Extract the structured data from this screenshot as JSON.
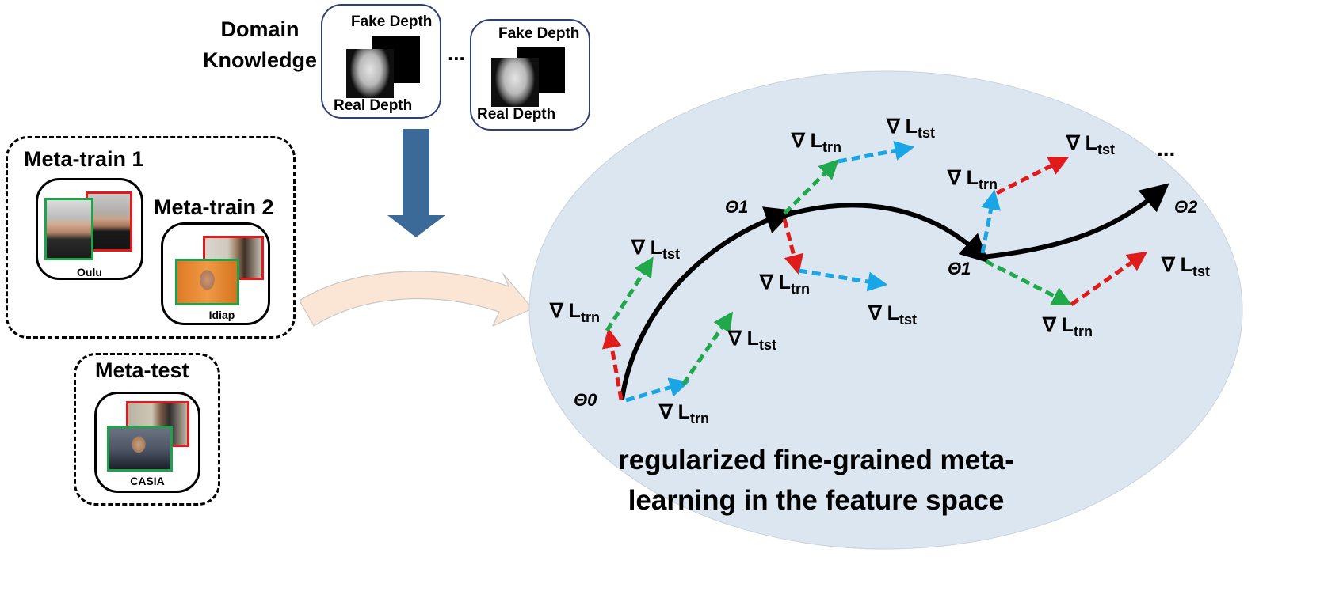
{
  "domain_knowledge": {
    "title_line1": "Domain",
    "title_line2": "Knowledge",
    "cards": [
      {
        "fake_label": "Fake Depth",
        "real_label": "Real Depth"
      },
      {
        "fake_label": "Fake Depth",
        "real_label": "Real Depth"
      }
    ],
    "ellipsis": "..."
  },
  "meta_train_group": {
    "sets": [
      {
        "title": "Meta-train 1",
        "dataset": "Oulu"
      },
      {
        "title": "Meta-train 2",
        "dataset": "Idiap"
      }
    ]
  },
  "meta_test": {
    "title": "Meta-test",
    "dataset": "CASIA"
  },
  "feature_space": {
    "caption_line1": "regularized fine-grained meta-",
    "caption_line2": "learning in the feature space",
    "theta_labels": {
      "theta0": "Θ0",
      "theta1": "Θ1",
      "theta2": "Θ2"
    },
    "grad_symbol": "∇ L",
    "sub_trn": "trn",
    "sub_tst": "tst",
    "ellipsis": "..."
  },
  "colors": {
    "ellipse_fill": "#dbe6f0",
    "red_frame": "#e01b1b",
    "green_frame": "#1fa34a",
    "down_arrow": "#3b6a99",
    "curved_arrow": "#fbe5d5",
    "grad_red": "#e01b1b",
    "grad_green": "#21a84a",
    "grad_blue": "#19a6e6"
  }
}
